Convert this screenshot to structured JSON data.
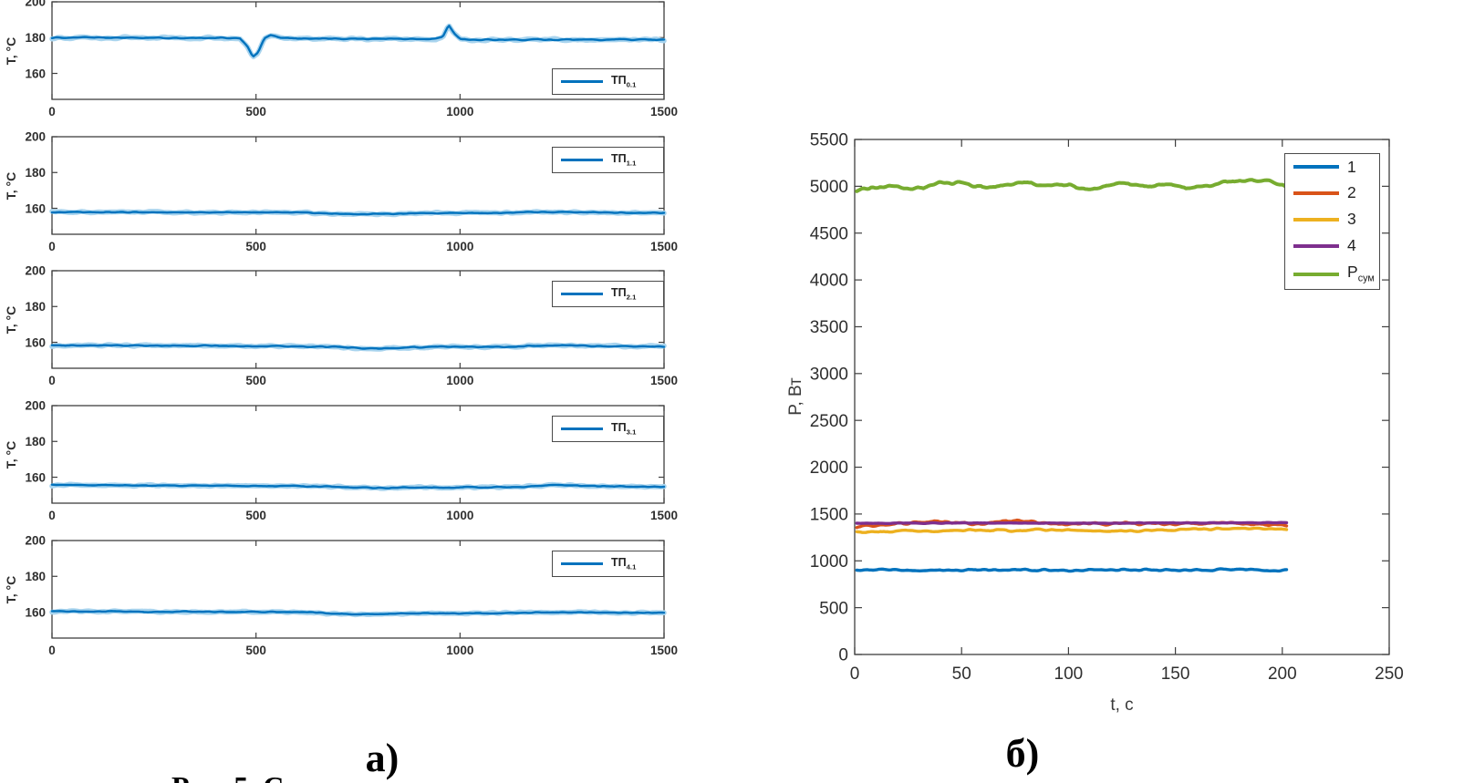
{
  "labels": {
    "panel_a": "а)",
    "panel_b": "б)",
    "caption_cutoff": "Рис. 5. С"
  },
  "palette": {
    "blue": "#0072BD",
    "orange": "#D95319",
    "yellow": "#EDB120",
    "purple": "#7E2F8E",
    "green": "#77AC30",
    "halo_blue": "#A9D4EE",
    "axis": "#3f3f3f"
  },
  "chart_data": [
    {
      "id": "tp0",
      "type": "line",
      "xlabel": "",
      "ylabel": "T, °C",
      "xlim": [
        0,
        1500
      ],
      "ylim": [
        145.5,
        200
      ],
      "xticks": [
        0,
        500,
        1000,
        1500
      ],
      "yticks": [
        160,
        180,
        200
      ],
      "grid": false,
      "legend_position": "bottom-right",
      "series": [
        {
          "name": "ТП0.1",
          "legend_label": "ТП",
          "legend_sub": "0.1",
          "color": "#0072BD",
          "halo": "#A9D4EE",
          "noise": 0.28,
          "width": 2.4,
          "points": [
            [
              0,
              180
            ],
            [
              300,
              179.9
            ],
            [
              460,
              179.8
            ],
            [
              478,
              175.5
            ],
            [
              492,
              169.3
            ],
            [
              505,
              171.5
            ],
            [
              520,
              179.5
            ],
            [
              535,
              181.3
            ],
            [
              560,
              180.2
            ],
            [
              600,
              179.4
            ],
            [
              800,
              179.3
            ],
            [
              940,
              179.2
            ],
            [
              958,
              180.5
            ],
            [
              972,
              187
            ],
            [
              985,
              182.5
            ],
            [
              1000,
              179.5
            ],
            [
              1020,
              178.6
            ],
            [
              1100,
              178.8
            ],
            [
              1300,
              178.9
            ],
            [
              1500,
              178.8
            ]
          ]
        }
      ]
    },
    {
      "id": "tp1",
      "type": "line",
      "xlabel": "",
      "ylabel": "T, °C",
      "xlim": [
        0,
        1500
      ],
      "ylim": [
        145.5,
        200
      ],
      "xticks": [
        0,
        500,
        1000,
        1500
      ],
      "yticks": [
        160,
        180,
        200
      ],
      "grid": false,
      "legend_position": "top-right",
      "series": [
        {
          "name": "ТП1.1",
          "legend_label": "ТП",
          "legend_sub": "1.1",
          "color": "#0072BD",
          "halo": "#A9D4EE",
          "noise": 0.22,
          "width": 2.4,
          "points": [
            [
              0,
              157.9
            ],
            [
              300,
              157.8
            ],
            [
              600,
              157.7
            ],
            [
              680,
              157.2
            ],
            [
              750,
              156.6
            ],
            [
              820,
              156.9
            ],
            [
              900,
              157.3
            ],
            [
              1100,
              157.4
            ],
            [
              1180,
              157.9
            ],
            [
              1250,
              158.0
            ],
            [
              1320,
              157.7
            ],
            [
              1420,
              157.5
            ],
            [
              1500,
              157.5
            ]
          ]
        }
      ]
    },
    {
      "id": "tp2",
      "type": "line",
      "xlabel": "",
      "ylabel": "T, °C",
      "xlim": [
        0,
        1500
      ],
      "ylim": [
        145.5,
        200
      ],
      "xticks": [
        0,
        500,
        1000,
        1500
      ],
      "yticks": [
        160,
        180,
        200
      ],
      "grid": false,
      "legend_position": "top-right",
      "series": [
        {
          "name": "ТП2.1",
          "legend_label": "ТП",
          "legend_sub": "2.1",
          "color": "#0072BD",
          "halo": "#A9D4EE",
          "noise": 0.25,
          "width": 2.4,
          "points": [
            [
              0,
              158.3
            ],
            [
              400,
              158.0
            ],
            [
              650,
              157.7
            ],
            [
              720,
              157.0
            ],
            [
              790,
              156.5
            ],
            [
              860,
              157.0
            ],
            [
              950,
              157.5
            ],
            [
              1100,
              157.4
            ],
            [
              1180,
              158.0
            ],
            [
              1250,
              158.3
            ],
            [
              1320,
              157.9
            ],
            [
              1500,
              157.6
            ]
          ]
        }
      ]
    },
    {
      "id": "tp3",
      "type": "line",
      "xlabel": "",
      "ylabel": "T, °C",
      "xlim": [
        0,
        1500
      ],
      "ylim": [
        145.5,
        200
      ],
      "xticks": [
        0,
        500,
        1000,
        1500
      ],
      "yticks": [
        160,
        180,
        200
      ],
      "grid": false,
      "legend_position": "top-right",
      "series": [
        {
          "name": "ТП3.1",
          "legend_label": "ТП",
          "legend_sub": "3.1",
          "color": "#0072BD",
          "halo": "#A9D4EE",
          "noise": 0.25,
          "width": 2.4,
          "points": [
            [
              0,
              155.6
            ],
            [
              400,
              155.3
            ],
            [
              650,
              155.0
            ],
            [
              720,
              154.4
            ],
            [
              790,
              154.0
            ],
            [
              900,
              154.2
            ],
            [
              1050,
              154.3
            ],
            [
              1150,
              154.6
            ],
            [
              1230,
              155.6
            ],
            [
              1300,
              155.3
            ],
            [
              1400,
              154.8
            ],
            [
              1500,
              154.6
            ]
          ]
        }
      ]
    },
    {
      "id": "tp4",
      "type": "line",
      "xlabel": "",
      "ylabel": "T, °C",
      "xlim": [
        0,
        1500
      ],
      "ylim": [
        145.5,
        200
      ],
      "xticks": [
        0,
        500,
        1000,
        1500
      ],
      "yticks": [
        160,
        180,
        200
      ],
      "grid": false,
      "legend_position": "top-right",
      "series": [
        {
          "name": "ТП4.1",
          "legend_label": "ТП",
          "legend_sub": "4.1",
          "color": "#0072BD",
          "halo": "#A9D4EE",
          "noise": 0.22,
          "width": 2.4,
          "points": [
            [
              0,
              160.4
            ],
            [
              400,
              160.2
            ],
            [
              620,
              160.0
            ],
            [
              690,
              159.2
            ],
            [
              740,
              158.7
            ],
            [
              800,
              158.9
            ],
            [
              900,
              159.3
            ],
            [
              1100,
              159.4
            ],
            [
              1200,
              159.9
            ],
            [
              1280,
              159.9
            ],
            [
              1400,
              159.6
            ],
            [
              1500,
              159.7
            ]
          ]
        }
      ]
    },
    {
      "id": "power",
      "type": "line",
      "xlabel": "t, c",
      "ylabel": "P, Вт",
      "xlim": [
        0,
        250
      ],
      "ylim": [
        0,
        5500
      ],
      "xticks": [
        0,
        50,
        100,
        150,
        200,
        250
      ],
      "yticks": [
        0,
        500,
        1000,
        1500,
        2000,
        2500,
        3000,
        3500,
        4000,
        4500,
        5000,
        5500
      ],
      "grid": false,
      "legend_position": "top-right",
      "series": [
        {
          "name": "1",
          "legend_label": "1",
          "color": "#0072BD",
          "noise": 8,
          "width": 3.4,
          "points": [
            [
              1,
              905
            ],
            [
              30,
              900
            ],
            [
              60,
              905
            ],
            [
              90,
              900
            ],
            [
              120,
              905
            ],
            [
              150,
              900
            ],
            [
              180,
              905
            ],
            [
              202,
              898
            ]
          ]
        },
        {
          "name": "2",
          "legend_label": "2",
          "color": "#D95319",
          "noise": 12,
          "width": 3.4,
          "points": [
            [
              1,
              1365
            ],
            [
              20,
              1395
            ],
            [
              40,
              1425
            ],
            [
              55,
              1390
            ],
            [
              75,
              1430
            ],
            [
              95,
              1395
            ],
            [
              120,
              1400
            ],
            [
              140,
              1395
            ],
            [
              160,
              1400
            ],
            [
              180,
              1395
            ],
            [
              202,
              1385
            ]
          ]
        },
        {
          "name": "3",
          "legend_label": "3",
          "color": "#EDB120",
          "noise": 9,
          "width": 3.4,
          "points": [
            [
              1,
              1305
            ],
            [
              30,
              1320
            ],
            [
              60,
              1325
            ],
            [
              90,
              1330
            ],
            [
              120,
              1315
            ],
            [
              150,
              1330
            ],
            [
              170,
              1345
            ],
            [
              190,
              1345
            ],
            [
              202,
              1330
            ]
          ]
        },
        {
          "name": "4",
          "legend_label": "4",
          "color": "#7E2F8E",
          "noise": 3,
          "width": 3.4,
          "points": [
            [
              1,
              1400
            ],
            [
              50,
              1405
            ],
            [
              100,
              1402
            ],
            [
              150,
              1405
            ],
            [
              202,
              1408
            ]
          ]
        },
        {
          "name": "Pсум",
          "legend_label": "P",
          "legend_sub": "сум",
          "color": "#77AC30",
          "noise": 15,
          "width": 4,
          "points": [
            [
              1,
              4950
            ],
            [
              8,
              4990
            ],
            [
              20,
              5000
            ],
            [
              32,
              4975
            ],
            [
              40,
              5030
            ],
            [
              50,
              5040
            ],
            [
              60,
              4985
            ],
            [
              70,
              5010
            ],
            [
              80,
              5045
            ],
            [
              88,
              5010
            ],
            [
              100,
              5020
            ],
            [
              108,
              4960
            ],
            [
              118,
              5010
            ],
            [
              128,
              5035
            ],
            [
              138,
              5000
            ],
            [
              148,
              5030
            ],
            [
              155,
              4975
            ],
            [
              165,
              5010
            ],
            [
              175,
              5050
            ],
            [
              185,
              5075
            ],
            [
              192,
              5060
            ],
            [
              200,
              5020
            ],
            [
              202,
              5000
            ]
          ]
        }
      ]
    }
  ]
}
